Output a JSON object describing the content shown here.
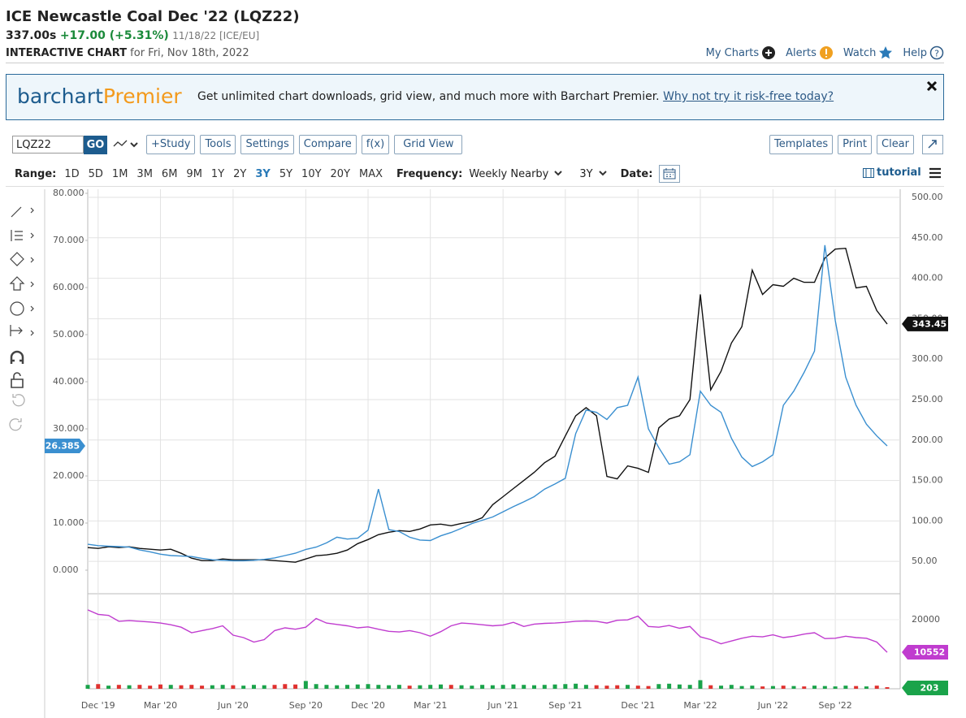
{
  "header": {
    "title": "ICE Newcastle Coal Dec '22 (LQZ22)",
    "price": "337.00s",
    "change": "+17.00 (+5.31%)",
    "date": "11/18/22 [ICE/EU]",
    "chart_label": "INTERACTIVE CHART",
    "chart_date": "for Fri, Nov 18th, 2022",
    "links": [
      "My Charts",
      "Alerts",
      "Watch",
      "Help"
    ]
  },
  "banner": {
    "brand": "barchart",
    "brand_suffix": "Premier",
    "text": "Get unlimited chart downloads, grid view, and much more with Barchart Premier.",
    "link": "Why not try it risk-free today?"
  },
  "toolbar": {
    "symbol": "LQZ22",
    "go": "GO",
    "buttons": [
      "+Study",
      "Tools",
      "Settings",
      "Compare",
      "f(x)",
      "Grid View"
    ],
    "right_buttons": [
      "Templates",
      "Print",
      "Clear"
    ]
  },
  "range": {
    "label": "Range:",
    "options": [
      "1D",
      "5D",
      "1M",
      "3M",
      "6M",
      "9M",
      "1Y",
      "2Y",
      "3Y",
      "5Y",
      "10Y",
      "20Y",
      "MAX"
    ],
    "selected": "3Y",
    "frequency_label": "Frequency:",
    "frequency": "Weekly Nearby",
    "period": "3Y",
    "date_label": "Date:",
    "tutorial": "tutorial"
  },
  "chart_data": [
    {
      "type": "line",
      "categories": [
        null,
        "Dec '19",
        null,
        null,
        null,
        null,
        null,
        "Mar '20",
        null,
        null,
        null,
        null,
        null,
        null,
        "Jun '20",
        null,
        null,
        null,
        null,
        null,
        null,
        "Sep '20",
        null,
        null,
        null,
        null,
        null,
        "Dec '20",
        null,
        null,
        null,
        null,
        null,
        "Mar '21",
        null,
        null,
        null,
        null,
        null,
        null,
        "Jun '21",
        null,
        null,
        null,
        null,
        null,
        "Sep '21",
        null,
        null,
        null,
        null,
        null,
        null,
        "Dec '21",
        null,
        null,
        null,
        null,
        null,
        "Mar '22",
        null,
        null,
        null,
        null,
        null,
        null,
        "Jun '22",
        null,
        null,
        null,
        null,
        null,
        "Sep '22",
        null,
        null,
        null,
        null,
        null
      ],
      "series": [
        {
          "color": "#111111",
          "axis": "y2",
          "values": [
            67,
            66,
            68,
            67,
            68,
            66,
            65,
            64,
            65,
            60,
            54,
            51,
            51,
            53,
            52,
            52,
            52,
            52,
            51,
            50,
            49,
            53,
            57,
            58,
            60,
            64,
            72,
            77,
            83,
            86,
            88,
            87,
            90,
            95,
            96,
            94,
            97,
            99,
            104,
            120,
            130,
            140,
            150,
            160,
            172,
            180,
            205,
            230,
            240,
            230,
            155,
            152,
            168,
            165,
            160,
            215,
            226,
            230,
            250,
            380,
            262,
            285,
            320,
            340,
            410,
            380,
            392,
            390,
            400,
            395,
            395,
            425,
            436,
            437,
            388,
            390,
            360,
            343.45
          ]
        },
        {
          "color": "#3a8fd0",
          "values": [
            5.5,
            5.2,
            5.1,
            5.0,
            4.9,
            4.3,
            3.9,
            3.4,
            3.1,
            3.0,
            2.9,
            2.5,
            2.2,
            2.1,
            2.0,
            2.0,
            2.1,
            2.3,
            2.6,
            3.1,
            3.6,
            4.4,
            4.9,
            5.8,
            7.0,
            6.6,
            6.8,
            8.5,
            17.2,
            8.6,
            8.2,
            7.0,
            6.4,
            6.3,
            7.3,
            8.0,
            8.9,
            9.9,
            10.6,
            11.3,
            12.4,
            13.5,
            14.5,
            15.6,
            17.2,
            18.3,
            19.5,
            29.0,
            34.0,
            33.5,
            32.0,
            34.5,
            35.0,
            41.0,
            30.0,
            26.0,
            22.5,
            23.0,
            24.5,
            38.0,
            35.0,
            33.5,
            28.0,
            24.0,
            22.0,
            23.0,
            24.5,
            35.0,
            38.0,
            42.0,
            46.5,
            69.0,
            53.0,
            41.0,
            35.0,
            31.0,
            28.5,
            26.385
          ]
        }
      ],
      "ylim": [
        -5,
        80
      ],
      "yticks": [
        {
          "value": 0,
          "label": "0.000"
        },
        {
          "value": 10,
          "label": "10.000"
        },
        {
          "value": 20,
          "label": "20.000"
        },
        {
          "value": 30,
          "label": "30.000"
        },
        {
          "value": 40,
          "label": "40.000"
        },
        {
          "value": 50,
          "label": "50.000"
        },
        {
          "value": 60,
          "label": "60.000"
        },
        {
          "value": 70,
          "label": "70.000"
        },
        {
          "value": 80,
          "label": "80.000"
        }
      ],
      "y2lim": [
        10,
        505
      ],
      "y2ticks": [
        {
          "value": 50,
          "label": "50.00"
        },
        {
          "value": 100,
          "label": "100.00"
        },
        {
          "value": 150,
          "label": "150.00"
        },
        {
          "value": 200,
          "label": "200.00"
        },
        {
          "value": 250,
          "label": "250.00"
        },
        {
          "value": 300,
          "label": "300.00"
        },
        {
          "value": 350,
          "label": "350.00"
        },
        {
          "value": 400,
          "label": "400.00"
        },
        {
          "value": 450,
          "label": "450.00"
        },
        {
          "value": 500,
          "label": "500.00"
        }
      ],
      "grid": true
    },
    {
      "type": "line",
      "series": [
        {
          "color": "#c03ccf",
          "values": [
            22800,
            21500,
            21200,
            19500,
            19700,
            19500,
            19300,
            19000,
            18500,
            17800,
            16200,
            16800,
            17400,
            18200,
            15500,
            14800,
            13500,
            14200,
            16800,
            17600,
            17200,
            17800,
            20300,
            19000,
            18600,
            18200,
            17600,
            17900,
            17200,
            16600,
            16400,
            16800,
            16200,
            15200,
            16500,
            18200,
            19000,
            18800,
            18500,
            18200,
            18400,
            19200,
            18000,
            18700,
            18900,
            19000,
            19200,
            19500,
            19600,
            19500,
            19000,
            19800,
            19900,
            21000,
            18000,
            17800,
            18300,
            17500,
            18000,
            15000,
            14200,
            13000,
            13800,
            14600,
            15200,
            15000,
            15600,
            14800,
            15200,
            15800,
            16200,
            14500,
            14600,
            15200,
            14800,
            14600,
            13500,
            10552
          ]
        }
      ],
      "ylim": [
        0,
        27000
      ],
      "yticks": [
        20000
      ],
      "volume": {
        "up_color": "#1aa34a",
        "down_color": "#e0312f",
        "label_color": "#1aa34a",
        "ylim": [
          0,
          12000
        ],
        "values": [
          500,
          600,
          400,
          500,
          450,
          500,
          400,
          550,
          500,
          450,
          500,
          400,
          450,
          500,
          450,
          400,
          500,
          450,
          500,
          600,
          550,
          1000,
          600,
          500,
          450,
          500,
          550,
          600,
          500,
          450,
          500,
          400,
          450,
          500,
          550,
          500,
          450,
          400,
          500,
          450,
          500,
          550,
          500,
          450,
          500,
          550,
          600,
          650,
          500,
          450,
          400,
          450,
          500,
          400,
          350,
          600,
          650,
          550,
          500,
          1100,
          450,
          400,
          500,
          350,
          400,
          300,
          350,
          400,
          350,
          300,
          400,
          350,
          300,
          400,
          350,
          300,
          400,
          203
        ]
      }
    }
  ]
}
